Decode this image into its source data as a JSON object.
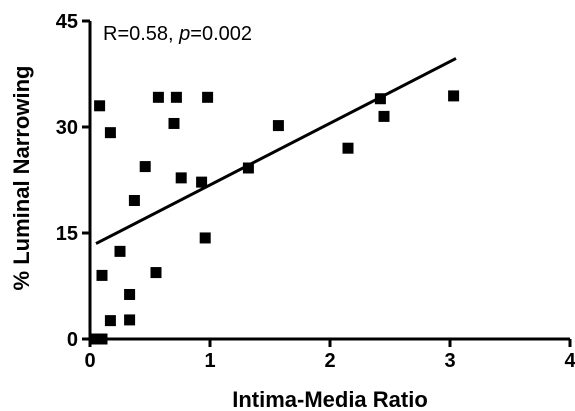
{
  "chart_data": {
    "type": "scatter",
    "title": "",
    "xlabel": "Intima-Media Ratio",
    "ylabel": "% Luminal Narrowing",
    "xlim": [
      0,
      4
    ],
    "ylim": [
      0,
      45
    ],
    "x_ticks": [
      "0",
      "1",
      "2",
      "3",
      "4"
    ],
    "y_ticks": [
      "0",
      "15",
      "30",
      "45"
    ],
    "grid": false,
    "annotation": {
      "prefix": "R=0.58, ",
      "p_symbol": "p",
      "suffix": "=0.002"
    },
    "points": [
      {
        "x": 0.05,
        "y": 0.0
      },
      {
        "x": 0.1,
        "y": 0.0
      },
      {
        "x": 0.08,
        "y": 33.0
      },
      {
        "x": 0.1,
        "y": 9.0
      },
      {
        "x": 0.17,
        "y": 29.2
      },
      {
        "x": 0.17,
        "y": 2.6
      },
      {
        "x": 0.25,
        "y": 12.4
      },
      {
        "x": 0.33,
        "y": 6.3
      },
      {
        "x": 0.33,
        "y": 2.7
      },
      {
        "x": 0.37,
        "y": 19.6
      },
      {
        "x": 0.46,
        "y": 24.4
      },
      {
        "x": 0.55,
        "y": 9.4
      },
      {
        "x": 0.57,
        "y": 34.2
      },
      {
        "x": 0.7,
        "y": 30.5
      },
      {
        "x": 0.72,
        "y": 34.2
      },
      {
        "x": 0.76,
        "y": 22.8
      },
      {
        "x": 0.93,
        "y": 22.2
      },
      {
        "x": 0.96,
        "y": 14.3
      },
      {
        "x": 0.98,
        "y": 34.2
      },
      {
        "x": 1.32,
        "y": 24.2
      },
      {
        "x": 1.57,
        "y": 30.2
      },
      {
        "x": 2.15,
        "y": 27.0
      },
      {
        "x": 2.42,
        "y": 34.0
      },
      {
        "x": 2.45,
        "y": 31.5
      },
      {
        "x": 3.03,
        "y": 34.4
      }
    ],
    "trendline": {
      "x": [
        0.05,
        3.05
      ],
      "y": [
        13.5,
        39.7
      ]
    }
  }
}
